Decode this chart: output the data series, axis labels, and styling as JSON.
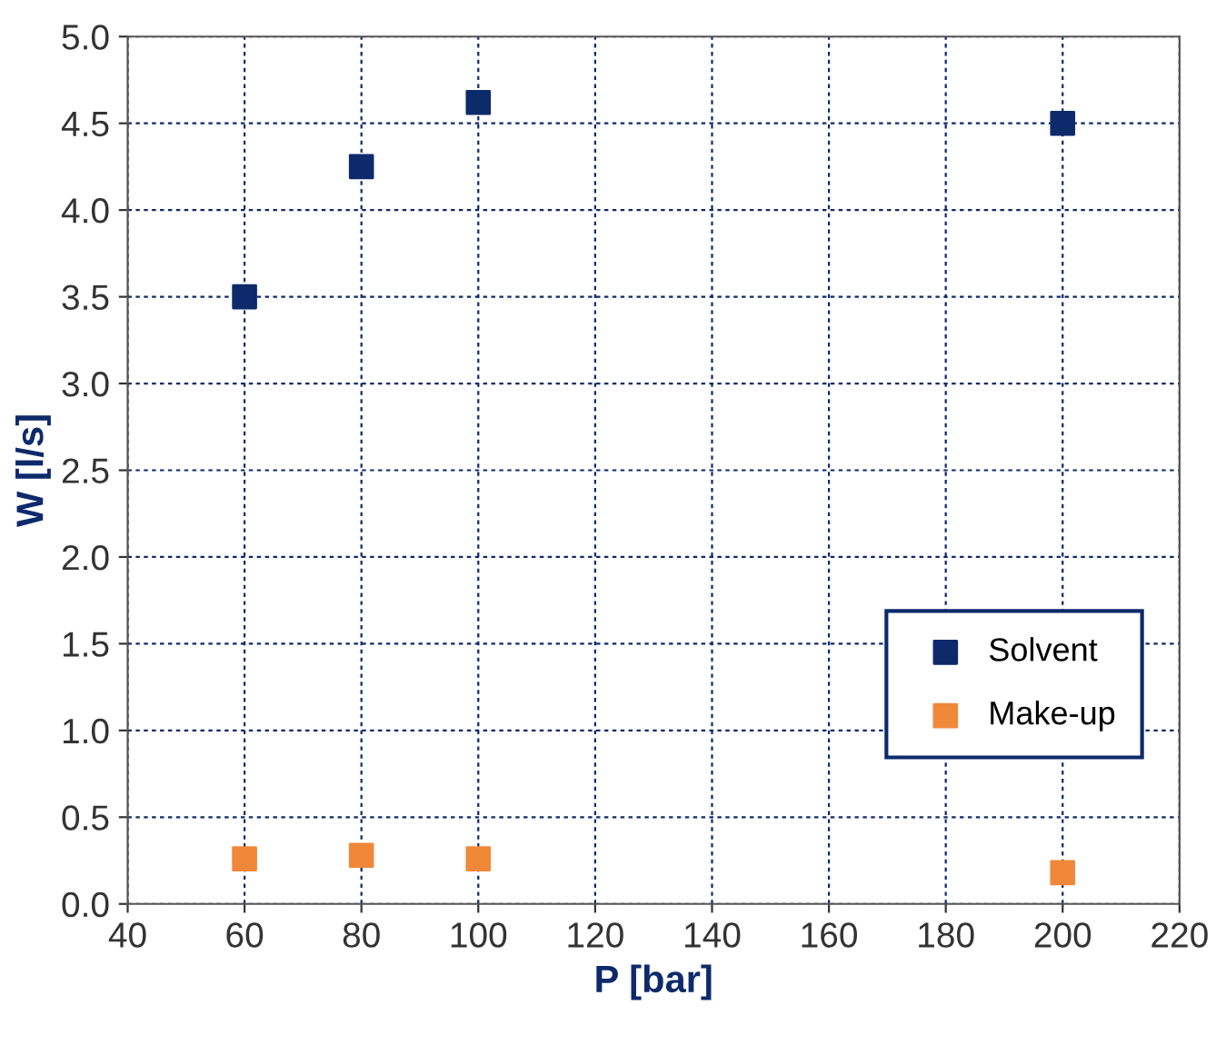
{
  "chart_data": {
    "type": "scatter",
    "xlabel": "P [bar]",
    "ylabel": "W [l/s]",
    "x": [
      60,
      80,
      100,
      200
    ],
    "series": [
      {
        "name": "Solvent",
        "color": "#0d2a6b",
        "values": [
          3.5,
          4.25,
          4.62,
          4.5
        ]
      },
      {
        "name": "Make-up",
        "color": "#f0883a",
        "values": [
          0.26,
          0.28,
          0.26,
          0.18
        ]
      }
    ],
    "xlim": [
      40,
      220
    ],
    "xticks": [
      40,
      60,
      80,
      100,
      120,
      140,
      160,
      180,
      200,
      220
    ],
    "ylim": [
      0,
      5
    ],
    "yticks": [
      {
        "value": 0,
        "label": "0.0"
      },
      0.5,
      {
        "value": 1,
        "label": "1.0"
      },
      1.5,
      {
        "value": 2,
        "label": "2.0"
      },
      2.5,
      {
        "value": 3,
        "label": "3.0"
      },
      3.5,
      {
        "value": 4,
        "label": "4.0"
      },
      4.5,
      {
        "value": 5,
        "label": "5.0"
      }
    ],
    "grid": true,
    "legend": "bottom right",
    "marker": "square"
  }
}
